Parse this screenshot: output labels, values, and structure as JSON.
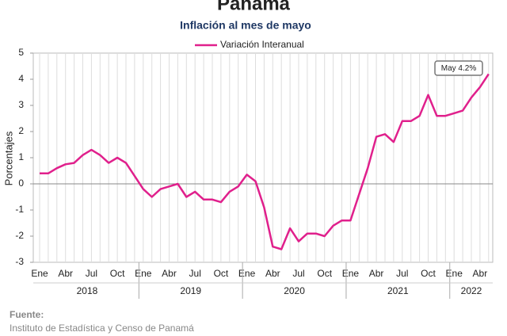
{
  "chart_data": {
    "type": "line",
    "title": "Panamá",
    "subtitle": "Inflación al mes de mayo",
    "y_label": "Porcentajes",
    "annotation": "May 4.2%",
    "categories": [
      "Ene",
      null,
      null,
      "Abr",
      null,
      null,
      "Jul",
      null,
      null,
      "Oct",
      null,
      null,
      "Ene",
      null,
      null,
      "Abr",
      null,
      null,
      "Jul",
      null,
      null,
      "Oct",
      null,
      null,
      "Ene",
      null,
      null,
      "Abr",
      null,
      null,
      "Jul",
      null,
      null,
      "Oct",
      null,
      null,
      "Ene",
      null,
      null,
      "Abr",
      null,
      null,
      "Jul",
      null,
      null,
      "Oct",
      null,
      null,
      "Ene",
      null,
      null,
      "Abr",
      null
    ],
    "years": [
      "2018",
      "2019",
      "2020",
      "2021",
      "2022"
    ],
    "series": [
      {
        "name": "Variación Interanual",
        "color": "#e0208c",
        "values": [
          0.4,
          0.4,
          0.6,
          0.75,
          0.8,
          1.1,
          1.3,
          1.1,
          0.8,
          1.0,
          0.8,
          0.3,
          -0.2,
          -0.5,
          -0.2,
          -0.1,
          0.0,
          -0.5,
          -0.3,
          -0.6,
          -0.6,
          -0.7,
          -0.3,
          -0.1,
          0.35,
          0.1,
          -0.9,
          -2.4,
          -2.5,
          -1.7,
          -2.2,
          -1.9,
          -1.9,
          -2.0,
          -1.6,
          -1.4,
          -1.4,
          -0.4,
          0.6,
          1.8,
          1.9,
          1.6,
          2.4,
          2.4,
          2.6,
          3.4,
          2.6,
          2.6,
          2.7,
          2.8,
          3.3,
          3.7,
          4.2
        ]
      }
    ],
    "ylim": [
      -3,
      5
    ],
    "yticks": [
      -3,
      -2,
      -1,
      0,
      1,
      2,
      3,
      4,
      5
    ],
    "grid": "x",
    "legend": "top"
  },
  "source": {
    "label": "Fuente:",
    "text": "Instituto de Estadística y Censo de Panamá"
  }
}
